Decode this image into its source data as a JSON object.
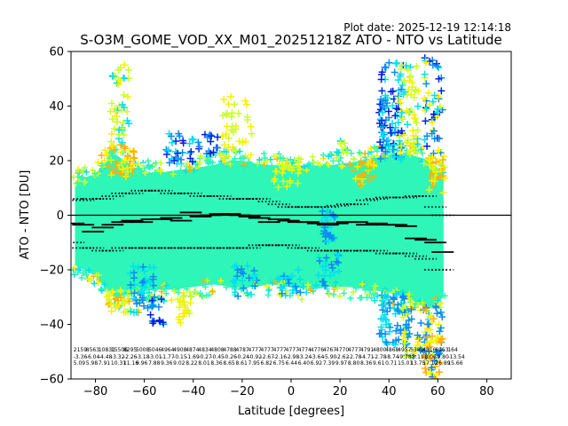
{
  "plot_date": "Plot date: 2025-12-19 12:14:18",
  "chart_data": {
    "type": "scatter",
    "title": "S-O3M_GOME_VOD_XX_M01_20251218Z ATO - NTO vs Latitude",
    "xlabel": "Latitude [degrees]",
    "ylabel": "ATO - NTO [DU]",
    "xlim": [
      -90,
      90
    ],
    "ylim": [
      -60,
      60
    ],
    "xticks": [
      -80,
      -60,
      -40,
      -20,
      0,
      20,
      40,
      60,
      80
    ],
    "yticks": [
      -60,
      -40,
      -20,
      0,
      20,
      40,
      60
    ],
    "grid": false,
    "reference_line_y": 0,
    "colors": {
      "dense_core": "#2ef5b8",
      "cyan": "#00e0f0",
      "blue": "#0a8cf0",
      "dark_blue": "#0022e0",
      "yellow_green": "#c8ff28",
      "yellow": "#f8f000",
      "orange": "#ffb000",
      "median": "#000000"
    },
    "envelope": {
      "lat": [
        -88,
        -80,
        -72,
        -64,
        -56,
        -48,
        -40,
        -32,
        -24,
        -16,
        -8,
        0,
        8,
        16,
        24,
        32,
        40,
        48,
        56,
        62
      ],
      "upper": [
        12,
        15,
        22,
        17,
        15,
        16,
        17,
        18,
        20,
        19,
        18,
        18,
        18,
        18,
        19,
        20,
        22,
        22,
        20,
        15
      ],
      "lower": [
        -18,
        -22,
        -30,
        -28,
        -27,
        -27,
        -26,
        -25,
        -26,
        -26,
        -25,
        -26,
        -27,
        -26,
        -26,
        -27,
        -28,
        -30,
        -34,
        -30
      ]
    },
    "median_x": [
      -89,
      -85,
      -81,
      -77,
      -73,
      -69,
      -65,
      -61,
      -57,
      -53,
      -49,
      -45,
      -41,
      -37,
      -33,
      -29,
      -25,
      -21,
      -17,
      -13,
      -9,
      -5,
      -1,
      3,
      7,
      11,
      15,
      19,
      23,
      27,
      31,
      35,
      39,
      43,
      47,
      51,
      55,
      59,
      62
    ],
    "median_y": [
      -3,
      -3.5,
      -6,
      -4.5,
      -3.5,
      -2.5,
      -2,
      -2.5,
      -1.5,
      -1.5,
      -1,
      -2,
      1,
      -0.5,
      0,
      0.5,
      0.5,
      0,
      -0.5,
      -1,
      -2.5,
      -1.5,
      -2,
      -2.5,
      -2.5,
      -3,
      -3.5,
      -3,
      -2.5,
      -2.5,
      -3.5,
      -3,
      -3.5,
      -3.5,
      -4,
      -8.5,
      -9,
      -10,
      -13.5
    ],
    "upper_pctl_y": [
      6,
      5.5,
      6,
      6,
      7,
      8,
      8,
      9,
      9,
      9,
      8,
      8,
      8,
      7,
      7,
      7,
      6,
      6,
      6,
      6,
      5,
      4,
      3,
      3,
      3,
      3,
      3,
      3.5,
      4,
      4,
      5.5,
      6,
      6.5,
      6.5,
      6.5,
      7,
      7,
      3,
      0
    ],
    "lower_pctl_y": [
      -10,
      -12,
      -12,
      -13,
      -13,
      -12,
      -12,
      -12,
      -12,
      -12,
      -12,
      -12,
      -12,
      -12,
      -12,
      -12,
      -12,
      -12,
      -12,
      -11,
      -11,
      -11,
      -11,
      -12,
      -12,
      -13,
      -13,
      -13,
      -13,
      -13,
      -13,
      -13,
      -14,
      -14,
      -14,
      -15,
      -16,
      -20,
      -20
    ],
    "stats_rows": [
      [
        "2159",
        "8563",
        "10831",
        "15506",
        "8295",
        "5008",
        "5046",
        "4964",
        "4908",
        "4874",
        "4834",
        "4808",
        "4788",
        "4787",
        "4777",
        "4777",
        "4777",
        "4777",
        "4774",
        "4776",
        "4767",
        "4770",
        "4777",
        "4791",
        "4800",
        "4868",
        "4957",
        "5389",
        "4816",
        "6963",
        "164"
      ],
      [
        "-3.36",
        "-6.04",
        "-4.48",
        "-3.32",
        "-2.26",
        "-3.18",
        "-3.01",
        "-1.77",
        "-0.15",
        "-1.69",
        "-0.27",
        "-0.45",
        "-0.26",
        "-0.24",
        "-0.92",
        "-2.67",
        "-2.16",
        "-2.98",
        "-3.24",
        "-3.64",
        "-5.90",
        "-2.62",
        "-2.78",
        "-4.71",
        "-2.78",
        "-8.74",
        "-9.78",
        "-8.11",
        "-8.06",
        "-9.80",
        "-13.54"
      ],
      [
        "5.09",
        "5.98",
        "7.91",
        "10.31",
        "11.16",
        "9.96",
        "7.88",
        "9.36",
        "9.02",
        "8.22",
        "8.01",
        "8.36",
        "8.65",
        "8.61",
        "7.95",
        "6.82",
        "6.75",
        "6.44",
        "6.40",
        "6.92",
        "7.39",
        "9.97",
        "8.80",
        "8.36",
        "9.61",
        "0.71",
        "15.01",
        "13.75",
        "17.12",
        "16.89",
        "15.66"
      ]
    ],
    "annotations": []
  }
}
